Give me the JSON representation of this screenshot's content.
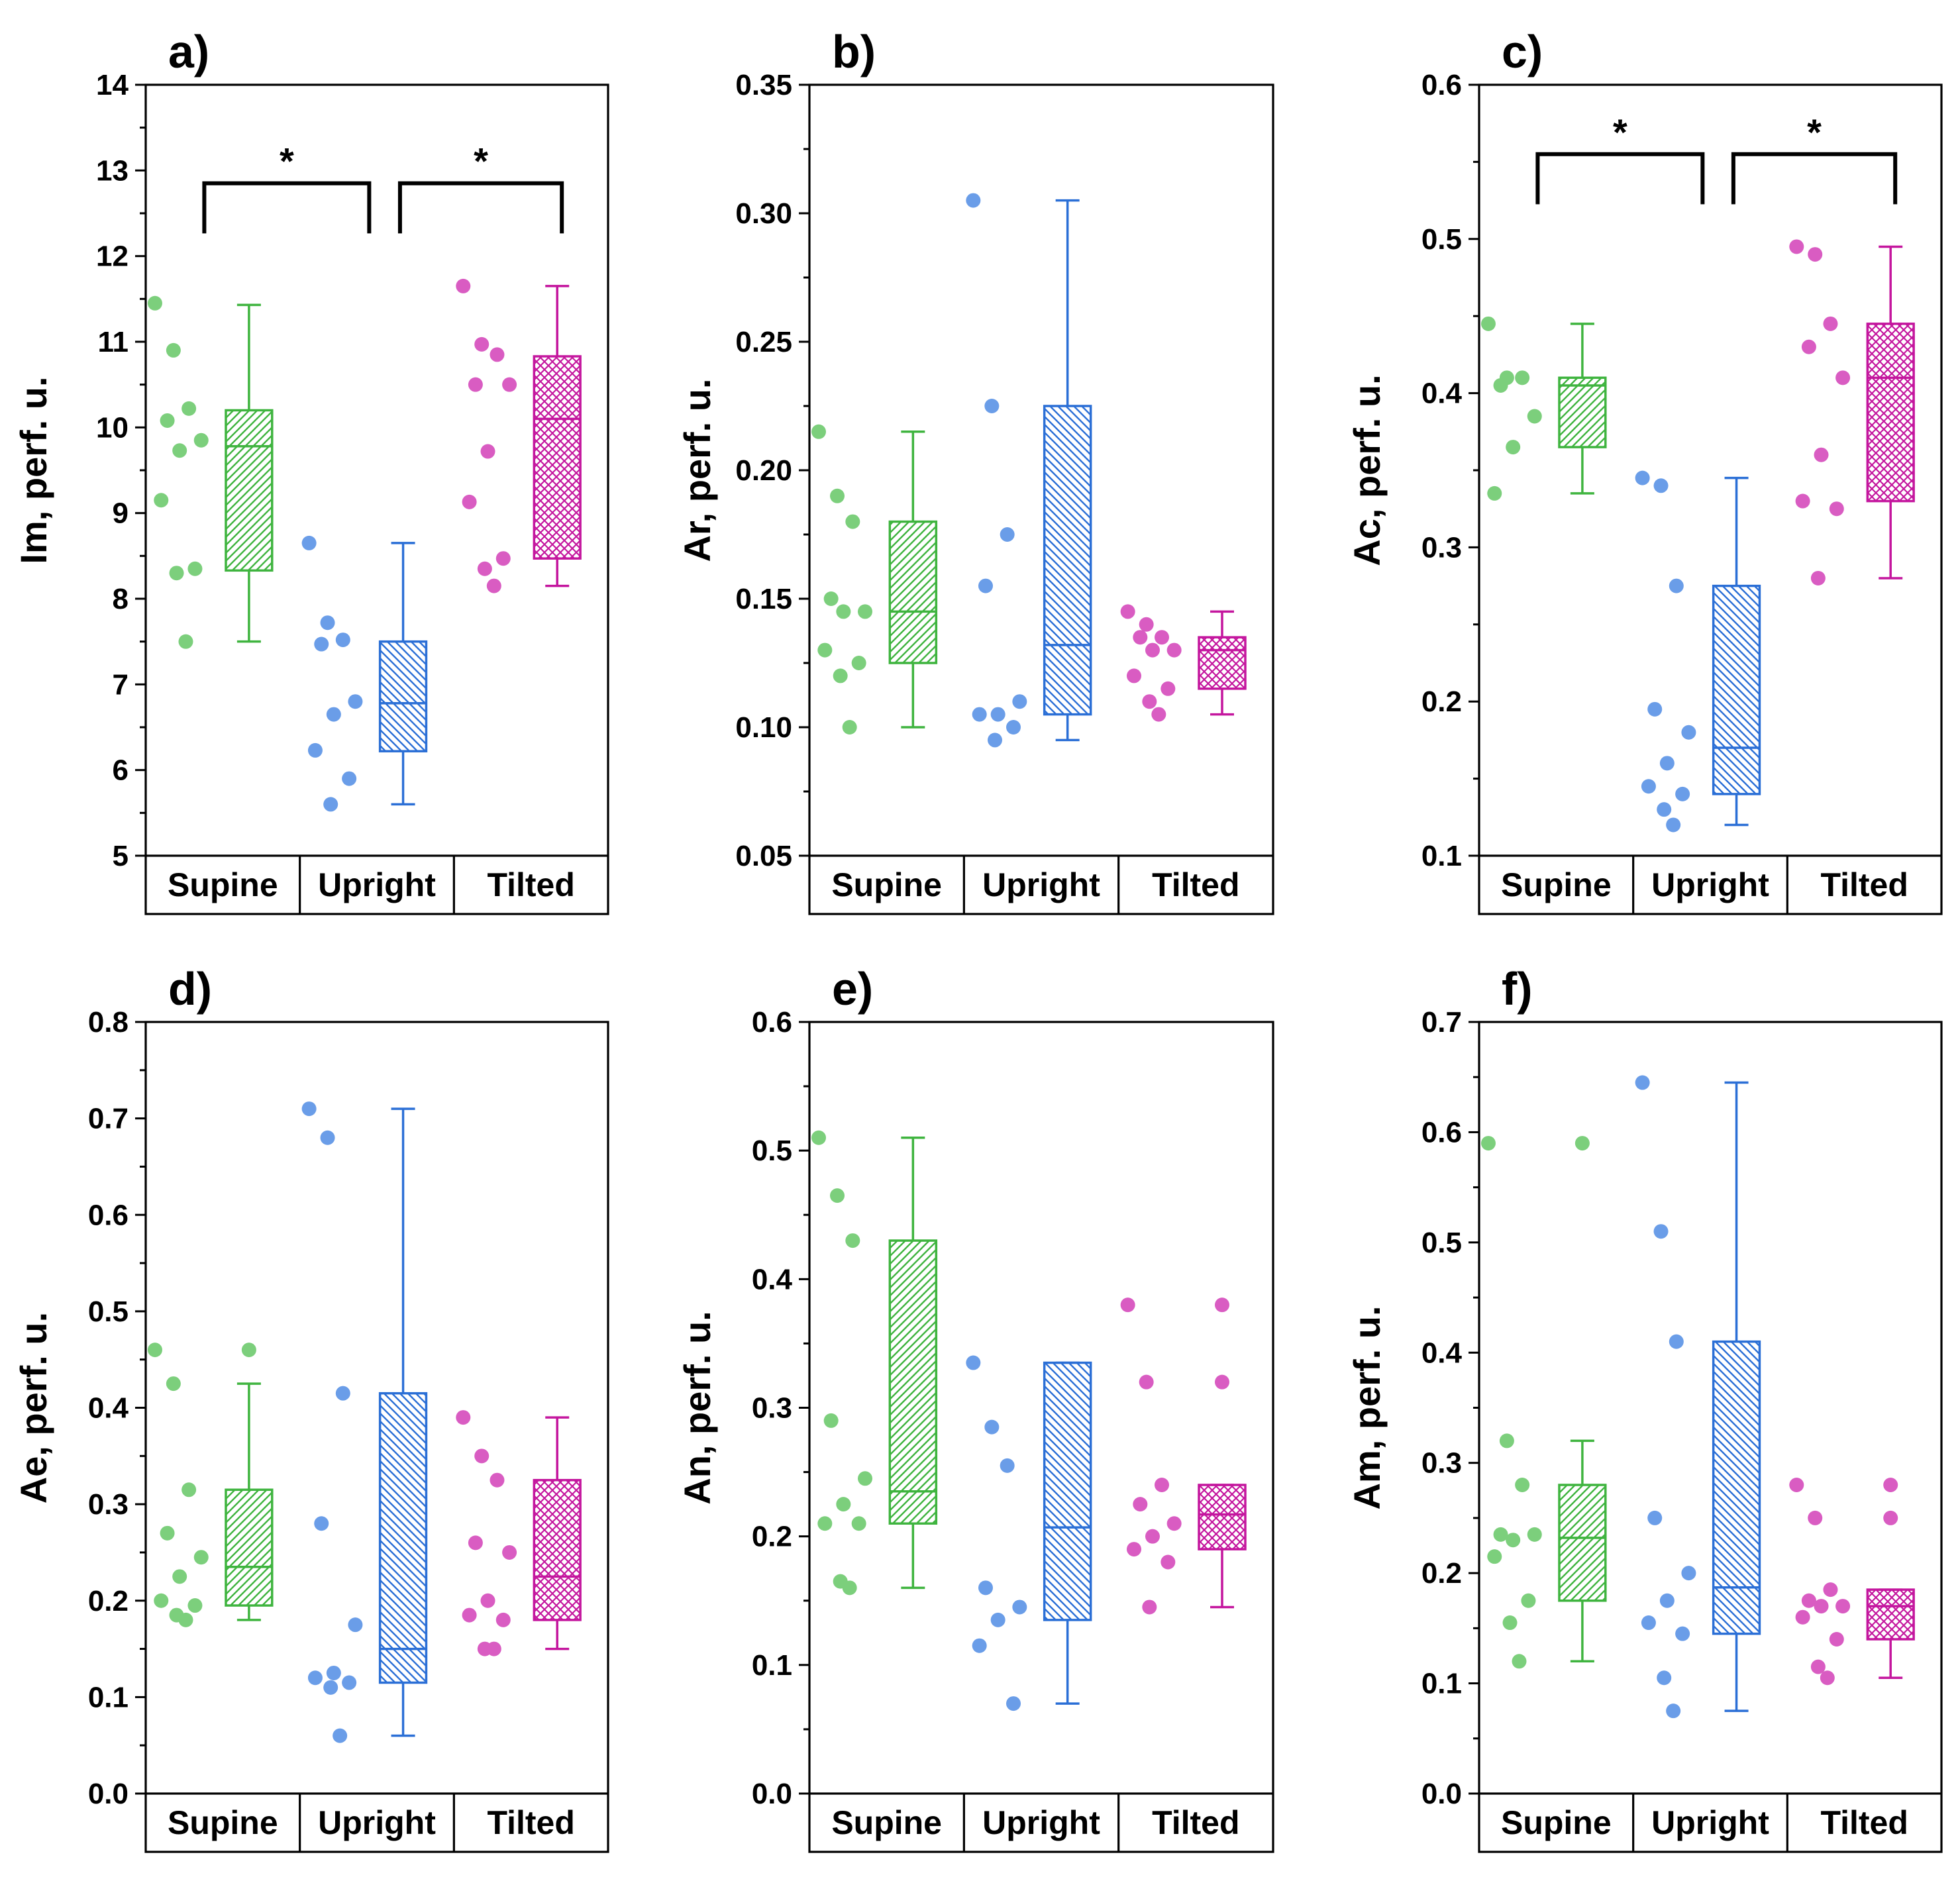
{
  "colors": {
    "supine": "#3fb43f",
    "upright": "#2b6fd6",
    "tilted": "#c4169e",
    "supine_point": "#7ccf7c",
    "upright_point": "#6a9de8",
    "tilted_point": "#d95cc2",
    "axis": "#000000"
  },
  "chart_data": [
    {
      "type": "box",
      "panel_label": "a)",
      "ylabel": "Im, perf. u.",
      "ylim": [
        5,
        14
      ],
      "yticks": [
        "5",
        "6",
        "7",
        "8",
        "9",
        "10",
        "11",
        "12",
        "13",
        "14"
      ],
      "categories": [
        "Supine",
        "Upright",
        "Tilted"
      ],
      "groups": [
        {
          "name": "Supine",
          "points": [
            11.45,
            10.9,
            10.22,
            10.08,
            9.85,
            9.73,
            9.15,
            8.35,
            8.3,
            7.5
          ],
          "box": {
            "whisker_low": 7.5,
            "q1": 8.33,
            "median": 9.78,
            "q3": 10.2,
            "whisker_high": 11.43
          }
        },
        {
          "name": "Upright",
          "points": [
            8.65,
            7.72,
            7.52,
            7.47,
            6.8,
            6.65,
            6.23,
            5.9,
            5.6
          ],
          "box": {
            "whisker_low": 5.6,
            "q1": 6.22,
            "median": 6.78,
            "q3": 7.5,
            "whisker_high": 8.65
          }
        },
        {
          "name": "Tilted",
          "points": [
            11.65,
            10.97,
            10.85,
            10.5,
            10.5,
            9.72,
            9.13,
            8.47,
            8.35,
            8.15
          ],
          "box": {
            "whisker_low": 8.15,
            "q1": 8.47,
            "median": 10.1,
            "q3": 10.83,
            "whisker_high": 11.65
          }
        }
      ],
      "significance": [
        {
          "from": "Supine",
          "to": "Upright",
          "y": 12.85,
          "label": "*"
        },
        {
          "from": "Upright",
          "to": "Tilted",
          "y": 12.85,
          "label": "*"
        }
      ]
    },
    {
      "type": "box",
      "panel_label": "b)",
      "ylabel": "Ar, perf. u.",
      "ylim": [
        0.05,
        0.35
      ],
      "yticks": [
        "0.05",
        "0.10",
        "0.15",
        "0.20",
        "0.25",
        "0.30",
        "0.35"
      ],
      "categories": [
        "Supine",
        "Upright",
        "Tilted"
      ],
      "groups": [
        {
          "name": "Supine",
          "points": [
            0.215,
            0.19,
            0.18,
            0.15,
            0.145,
            0.145,
            0.13,
            0.125,
            0.12,
            0.1
          ],
          "box": {
            "whisker_low": 0.1,
            "q1": 0.125,
            "median": 0.145,
            "q3": 0.18,
            "whisker_high": 0.215
          }
        },
        {
          "name": "Upright",
          "points": [
            0.305,
            0.225,
            0.175,
            0.155,
            0.11,
            0.105,
            0.105,
            0.1,
            0.095
          ],
          "box": {
            "whisker_low": 0.095,
            "q1": 0.105,
            "median": 0.132,
            "q3": 0.225,
            "whisker_high": 0.305
          }
        },
        {
          "name": "Tilted",
          "points": [
            0.145,
            0.14,
            0.135,
            0.135,
            0.13,
            0.13,
            0.12,
            0.115,
            0.11,
            0.105
          ],
          "box": {
            "whisker_low": 0.105,
            "q1": 0.115,
            "median": 0.13,
            "q3": 0.135,
            "whisker_high": 0.145
          }
        }
      ],
      "significance": []
    },
    {
      "type": "box",
      "panel_label": "c)",
      "ylabel": "Ac, perf. u.",
      "ylim": [
        0.1,
        0.6
      ],
      "yticks": [
        "0.1",
        "0.2",
        "0.3",
        "0.4",
        "0.5",
        "0.6"
      ],
      "categories": [
        "Supine",
        "Upright",
        "Tilted"
      ],
      "groups": [
        {
          "name": "Supine",
          "points": [
            0.445,
            0.41,
            0.41,
            0.405,
            0.385,
            0.365,
            0.335
          ],
          "box": {
            "whisker_low": 0.335,
            "q1": 0.365,
            "median": 0.405,
            "q3": 0.41,
            "whisker_high": 0.445
          }
        },
        {
          "name": "Upright",
          "points": [
            0.345,
            0.34,
            0.275,
            0.195,
            0.18,
            0.16,
            0.145,
            0.14,
            0.13,
            0.12
          ],
          "box": {
            "whisker_low": 0.12,
            "q1": 0.14,
            "median": 0.17,
            "q3": 0.275,
            "whisker_high": 0.345
          }
        },
        {
          "name": "Tilted",
          "points": [
            0.495,
            0.49,
            0.445,
            0.43,
            0.41,
            0.36,
            0.33,
            0.325,
            0.28
          ],
          "box": {
            "whisker_low": 0.28,
            "q1": 0.33,
            "median": 0.41,
            "q3": 0.445,
            "whisker_high": 0.495
          }
        }
      ],
      "significance": [
        {
          "from": "Supine",
          "to": "Upright",
          "y": 0.555,
          "label": "*"
        },
        {
          "from": "Upright",
          "to": "Tilted",
          "y": 0.555,
          "label": "*"
        }
      ]
    },
    {
      "type": "box",
      "panel_label": "d)",
      "ylabel": "Ae, perf. u.",
      "ylim": [
        0.0,
        0.8
      ],
      "yticks": [
        "0.0",
        "0.1",
        "0.2",
        "0.3",
        "0.4",
        "0.5",
        "0.6",
        "0.7",
        "0.8"
      ],
      "categories": [
        "Supine",
        "Upright",
        "Tilted"
      ],
      "groups": [
        {
          "name": "Supine",
          "points": [
            0.46,
            0.425,
            0.315,
            0.27,
            0.245,
            0.225,
            0.2,
            0.195,
            0.185,
            0.18
          ],
          "box": {
            "whisker_low": 0.18,
            "q1": 0.195,
            "median": 0.235,
            "q3": 0.315,
            "whisker_high": 0.425
          },
          "outliers": [
            0.46
          ]
        },
        {
          "name": "Upright",
          "points": [
            0.71,
            0.68,
            0.415,
            0.28,
            0.175,
            0.125,
            0.12,
            0.115,
            0.11,
            0.06
          ],
          "box": {
            "whisker_low": 0.06,
            "q1": 0.115,
            "median": 0.15,
            "q3": 0.415,
            "whisker_high": 0.71
          }
        },
        {
          "name": "Tilted",
          "points": [
            0.39,
            0.35,
            0.325,
            0.26,
            0.25,
            0.2,
            0.185,
            0.18,
            0.15,
            0.15
          ],
          "box": {
            "whisker_low": 0.15,
            "q1": 0.18,
            "median": 0.225,
            "q3": 0.325,
            "whisker_high": 0.39
          }
        }
      ],
      "significance": []
    },
    {
      "type": "box",
      "panel_label": "e)",
      "ylabel": "An, perf. u.",
      "ylim": [
        0.0,
        0.6
      ],
      "yticks": [
        "0.0",
        "0.1",
        "0.2",
        "0.3",
        "0.4",
        "0.5",
        "0.6"
      ],
      "categories": [
        "Supine",
        "Upright",
        "Tilted"
      ],
      "groups": [
        {
          "name": "Supine",
          "points": [
            0.51,
            0.465,
            0.43,
            0.29,
            0.245,
            0.225,
            0.21,
            0.21,
            0.165,
            0.16
          ],
          "box": {
            "whisker_low": 0.16,
            "q1": 0.21,
            "median": 0.235,
            "q3": 0.43,
            "whisker_high": 0.51
          }
        },
        {
          "name": "Upright",
          "points": [
            0.335,
            0.285,
            0.255,
            0.16,
            0.145,
            0.135,
            0.115,
            0.07
          ],
          "box": {
            "whisker_low": 0.07,
            "q1": 0.135,
            "median": 0.207,
            "q3": 0.335,
            "whisker_high": 0.335
          }
        },
        {
          "name": "Tilted",
          "points": [
            0.38,
            0.32,
            0.24,
            0.225,
            0.21,
            0.2,
            0.19,
            0.18,
            0.145
          ],
          "box": {
            "whisker_low": 0.145,
            "q1": 0.19,
            "median": 0.217,
            "q3": 0.24,
            "whisker_high": 0.24
          },
          "outliers": [
            0.38,
            0.32
          ]
        }
      ],
      "significance": []
    },
    {
      "type": "box",
      "panel_label": "f)",
      "ylabel": "Am, perf. u.",
      "ylim": [
        0.0,
        0.7
      ],
      "yticks": [
        "0.0",
        "0.1",
        "0.2",
        "0.3",
        "0.4",
        "0.5",
        "0.6",
        "0.7"
      ],
      "categories": [
        "Supine",
        "Upright",
        "Tilted"
      ],
      "groups": [
        {
          "name": "Supine",
          "points": [
            0.59,
            0.32,
            0.28,
            0.235,
            0.235,
            0.23,
            0.215,
            0.175,
            0.155,
            0.12
          ],
          "box": {
            "whisker_low": 0.12,
            "q1": 0.175,
            "median": 0.232,
            "q3": 0.28,
            "whisker_high": 0.32
          },
          "outliers": [
            0.59
          ]
        },
        {
          "name": "Upright",
          "points": [
            0.645,
            0.51,
            0.41,
            0.25,
            0.2,
            0.175,
            0.155,
            0.145,
            0.105,
            0.075
          ],
          "box": {
            "whisker_low": 0.075,
            "q1": 0.145,
            "median": 0.187,
            "q3": 0.41,
            "whisker_high": 0.645
          }
        },
        {
          "name": "Tilted",
          "points": [
            0.28,
            0.25,
            0.185,
            0.175,
            0.17,
            0.17,
            0.16,
            0.14,
            0.115,
            0.105
          ],
          "box": {
            "whisker_low": 0.105,
            "q1": 0.14,
            "median": 0.17,
            "q3": 0.185,
            "whisker_high": 0.185
          },
          "outliers": [
            0.28,
            0.25
          ]
        }
      ],
      "significance": []
    }
  ]
}
